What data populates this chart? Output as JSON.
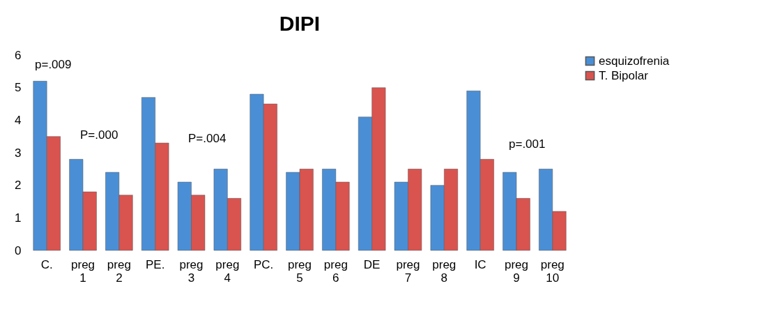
{
  "chart_data": {
    "type": "bar",
    "title": "DIPI",
    "categories": [
      "C.",
      "preg 1",
      "preg 2",
      "PE.",
      "preg 3",
      "preg 4",
      "PC.",
      "preg 5",
      "preg 6",
      "DE",
      "preg 7",
      "preg 8",
      "IC",
      "preg 9",
      "preg 10"
    ],
    "series": [
      {
        "name": "esquizofrenia",
        "color": "#4a8fd6",
        "values": [
          5.2,
          2.8,
          2.4,
          4.7,
          2.1,
          2.5,
          4.8,
          2.4,
          2.5,
          4.1,
          2.1,
          2.0,
          4.9,
          2.4,
          2.5
        ]
      },
      {
        "name": "T. Bipolar",
        "color": "#d9534f",
        "values": [
          3.5,
          1.8,
          1.7,
          3.3,
          1.7,
          1.6,
          4.5,
          2.5,
          2.1,
          5.0,
          2.5,
          2.5,
          2.8,
          1.6,
          1.2
        ]
      }
    ],
    "ylim": [
      0,
      6
    ],
    "yticks": [
      0,
      1,
      2,
      3,
      4,
      5,
      6
    ],
    "grid": false,
    "legend": "right",
    "annotations": [
      "p=.009",
      "P=.000",
      "P=.004",
      "p=.001"
    ]
  }
}
